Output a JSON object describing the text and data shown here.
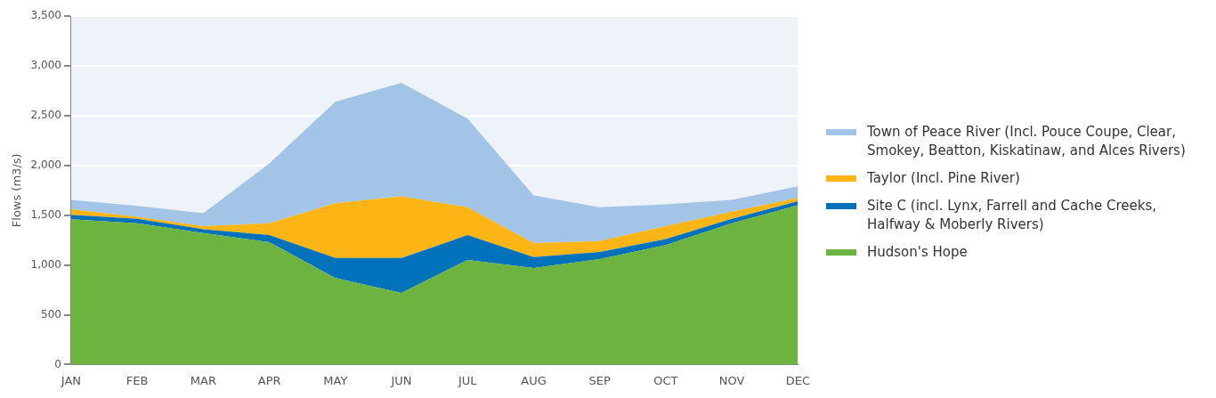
{
  "chart_data": {
    "type": "area",
    "stacked": true,
    "ylabel": "Flows (m3/s)",
    "categories": [
      "JAN",
      "FEB",
      "MAR",
      "APR",
      "MAY",
      "JUN",
      "JUL",
      "AUG",
      "SEP",
      "OCT",
      "NOV",
      "DEC"
    ],
    "ylim": [
      0,
      3500
    ],
    "yticks": [
      0,
      500,
      {
        "value": 1000,
        "label": "1,000"
      },
      {
        "value": 1500,
        "label": "1,500"
      },
      {
        "value": 2000,
        "label": "2,000"
      },
      {
        "value": 2500,
        "label": "2,500"
      },
      {
        "value": 3000,
        "label": "3,000"
      },
      {
        "value": 3500,
        "label": "3,500"
      }
    ],
    "grid": "y",
    "legend": "right",
    "series": [
      {
        "name": "Hudson's Hope",
        "color": "#6db33f",
        "values": [
          1460,
          1420,
          1320,
          1230,
          870,
          720,
          1050,
          970,
          1060,
          1200,
          1420,
          1600
        ]
      },
      {
        "name": "Site C (incl. Lynx, Farrell and Cache Creeks, Halfway & Moberly Rivers)",
        "color": "#0072bc",
        "values": [
          45,
          45,
          40,
          70,
          200,
          350,
          250,
          110,
          70,
          60,
          45,
          40
        ]
      },
      {
        "name": "Taylor (Incl. Pine River)",
        "color": "#fdb515",
        "values": [
          55,
          20,
          30,
          120,
          550,
          620,
          280,
          140,
          110,
          130,
          70,
          35
        ]
      },
      {
        "name": "Town of Peace River (Incl. Pouce Coupe, Clear, Smokey, Beatton, Kiskatinaw, and Alces Rivers)",
        "color": "#a2c4e6",
        "values": [
          95,
          110,
          130,
          600,
          1020,
          1140,
          890,
          480,
          340,
          220,
          120,
          115
        ]
      }
    ]
  }
}
